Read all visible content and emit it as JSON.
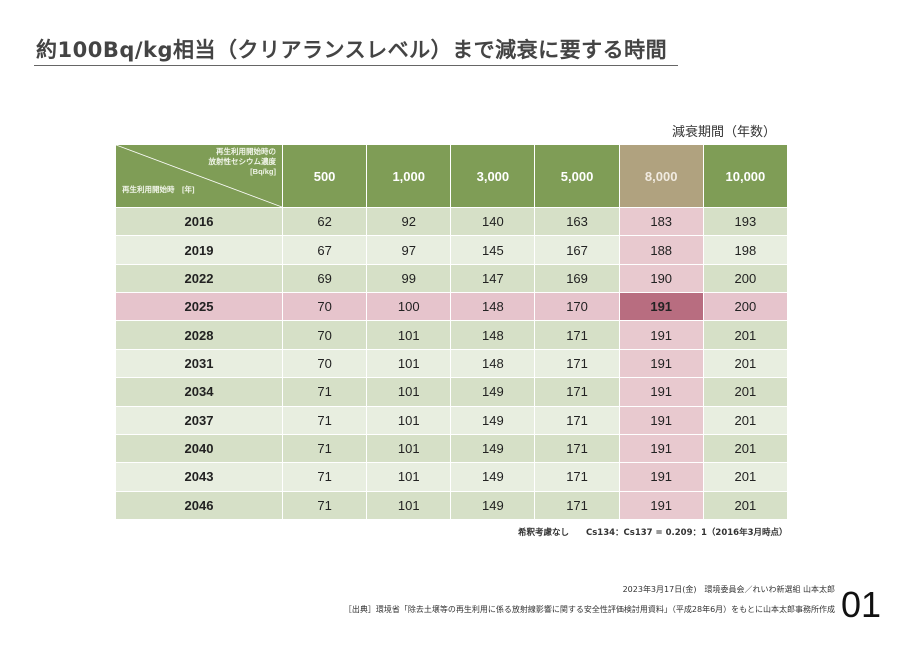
{
  "title": "約100Bq/kg相当（クリアランスレベル）まで減衰に要する時間",
  "table": {
    "caption": "減衰期間（年数）",
    "corner_top_lines": [
      "再生利用開始時の",
      "放射性セシウム濃度",
      "[Bq/kg]"
    ],
    "corner_bottom": "再生利用開始時　[年]",
    "columns": [
      "500",
      "1,000",
      "3,000",
      "5,000",
      "8,000",
      "10,000"
    ],
    "highlight_column": "8,000",
    "highlight_year": "2025",
    "rows": [
      {
        "year": "2016",
        "values": [
          "62",
          "92",
          "140",
          "163",
          "183",
          "193"
        ]
      },
      {
        "year": "2019",
        "values": [
          "67",
          "97",
          "145",
          "167",
          "188",
          "198"
        ]
      },
      {
        "year": "2022",
        "values": [
          "69",
          "99",
          "147",
          "169",
          "190",
          "200"
        ]
      },
      {
        "year": "2025",
        "values": [
          "70",
          "100",
          "148",
          "170",
          "191",
          "200"
        ]
      },
      {
        "year": "2028",
        "values": [
          "70",
          "101",
          "148",
          "171",
          "191",
          "201"
        ]
      },
      {
        "year": "2031",
        "values": [
          "70",
          "101",
          "148",
          "171",
          "191",
          "201"
        ]
      },
      {
        "year": "2034",
        "values": [
          "71",
          "101",
          "149",
          "171",
          "191",
          "201"
        ]
      },
      {
        "year": "2037",
        "values": [
          "71",
          "101",
          "149",
          "171",
          "191",
          "201"
        ]
      },
      {
        "year": "2040",
        "values": [
          "71",
          "101",
          "149",
          "171",
          "191",
          "201"
        ]
      },
      {
        "year": "2043",
        "values": [
          "71",
          "101",
          "149",
          "171",
          "191",
          "201"
        ]
      },
      {
        "year": "2046",
        "values": [
          "71",
          "101",
          "149",
          "171",
          "191",
          "201"
        ]
      }
    ],
    "note": "希釈考慮なし　　Cs134：Cs137 = 0.209：1（2016年3月時点）"
  },
  "footer": {
    "date_line": "2023年3月17日(金)　環境委員会／れいわ新選組 山本太郎",
    "source_line": "［出典］環境省「除去土壌等の再生利用に係る放射線影響に関する安全性評価検討用資料」（平成28年6月）をもとに山本太郎事務所作成"
  },
  "page_number": "01",
  "colors": {
    "header_green": "#7f9d56",
    "row_green_dark": "#d6e0c7",
    "row_green_light": "#e8eee0",
    "highlight_pink": "#e6c4cc",
    "highlight_cell": "#b86d80"
  }
}
